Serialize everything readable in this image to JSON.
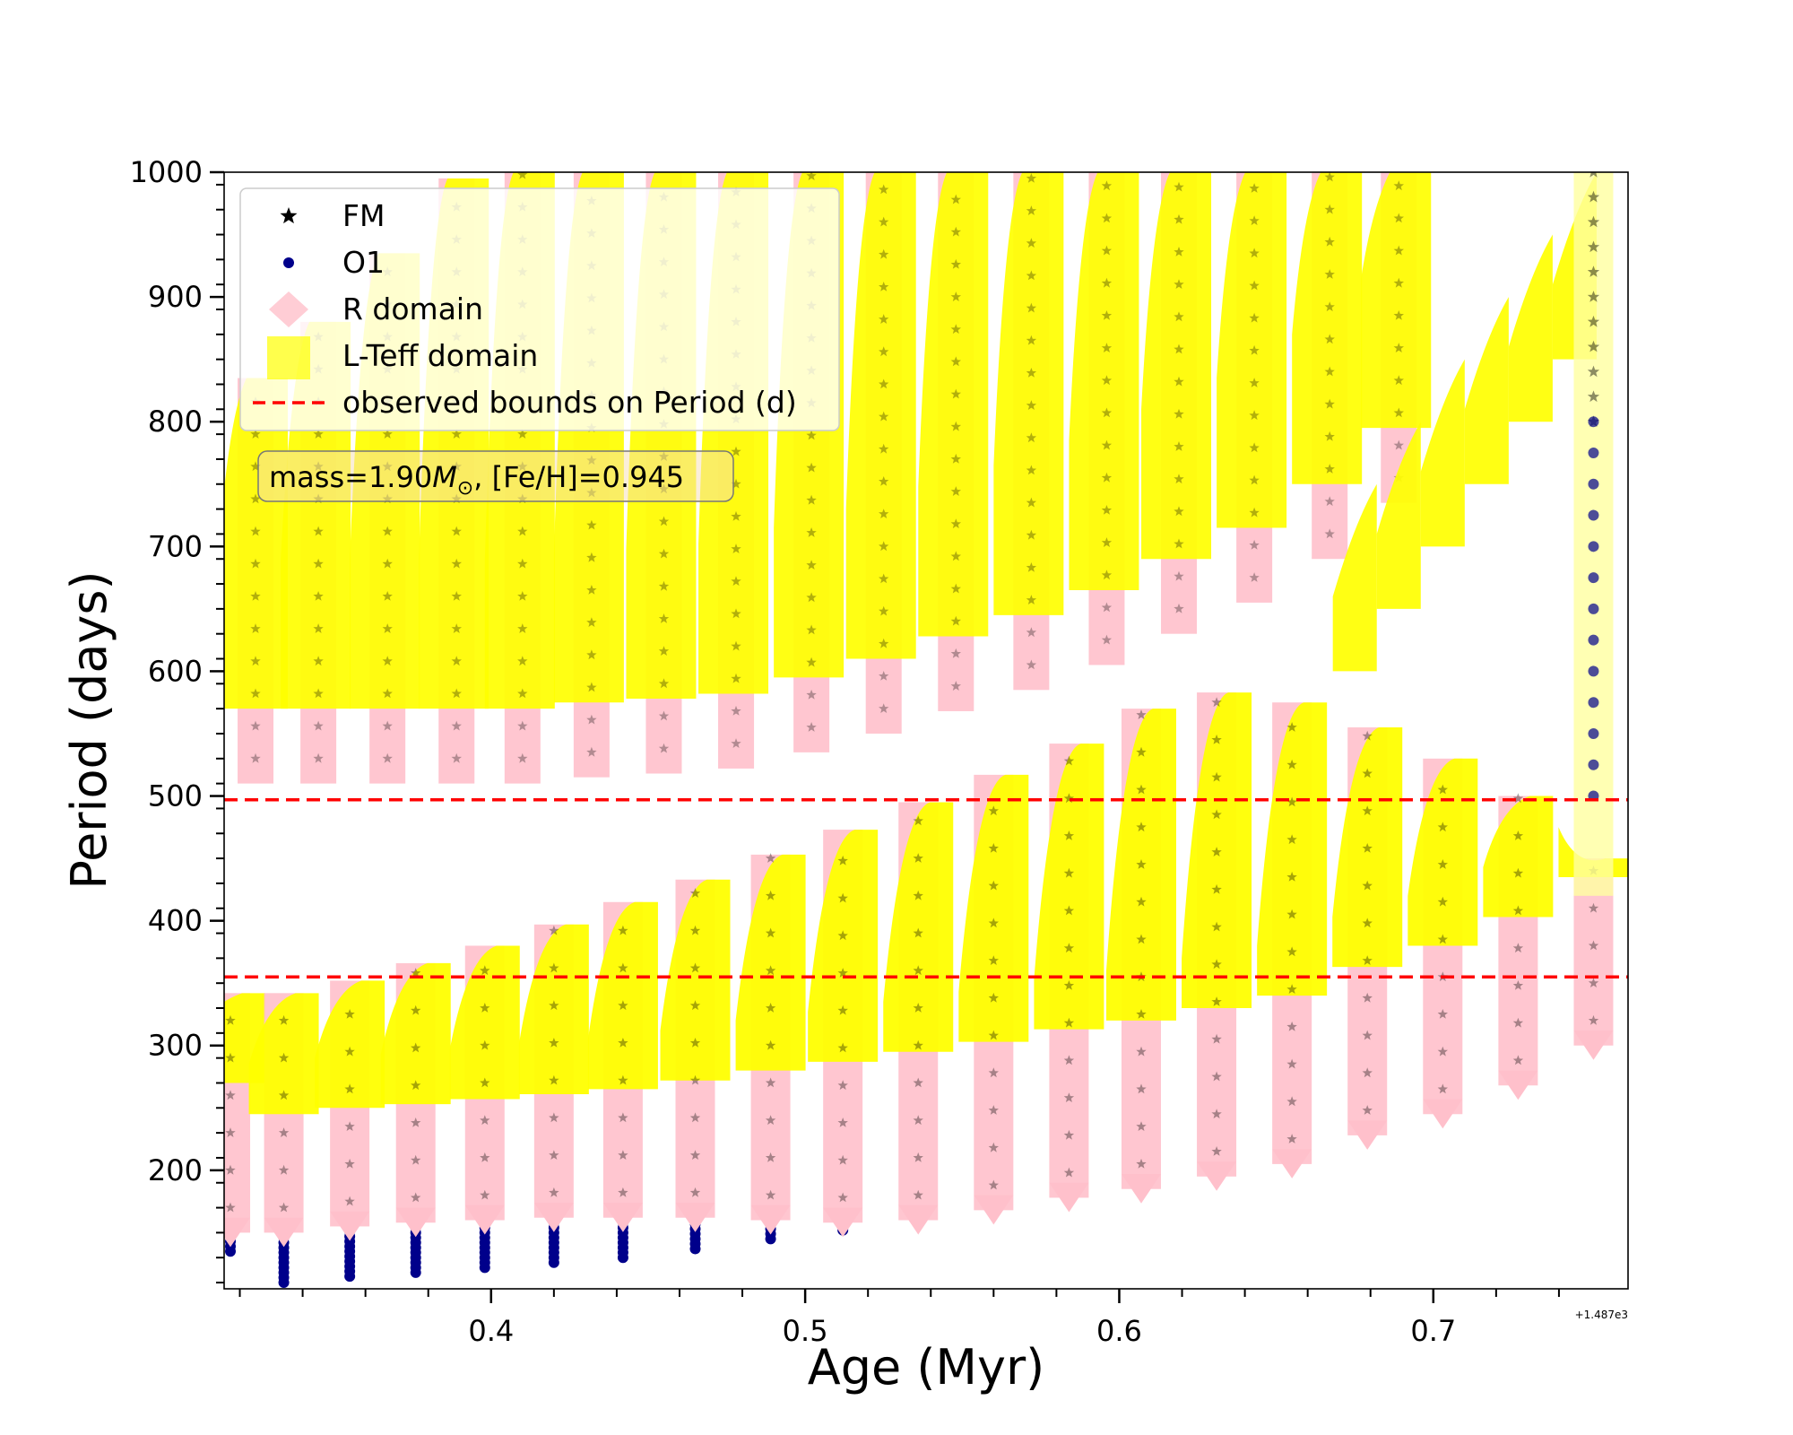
{
  "chart_data": {
    "type": "scatter",
    "title": "",
    "xlabel": "Age (Myr)",
    "ylabel": "Period (days)",
    "x_offset_label": "+1.487e3",
    "xlim": [
      0.315,
      0.762
    ],
    "ylim": [
      105,
      1000
    ],
    "x_ticks": [
      0.4,
      0.5,
      0.6,
      0.7
    ],
    "x_tick_labels": [
      "0.4",
      "0.5",
      "0.6",
      "0.7"
    ],
    "y_ticks": [
      200,
      300,
      400,
      500,
      600,
      700,
      800,
      900,
      1000
    ],
    "y_tick_labels": [
      "200",
      "300",
      "400",
      "500",
      "600",
      "700",
      "800",
      "900",
      "1000"
    ],
    "legend": {
      "placement": "upper-left",
      "entries": [
        {
          "label": "FM",
          "marker": "star",
          "color": "#000000"
        },
        {
          "label": "O1",
          "marker": "circle",
          "color": "#00008b"
        },
        {
          "label": "R domain",
          "marker": "diamond",
          "color": "#ffc0cb"
        },
        {
          "label": "L-Teff domain",
          "marker": "square",
          "color": "#ffff00"
        },
        {
          "label": "observed bounds on Period (d)",
          "marker": "dashed-line",
          "color": "#ff0000"
        }
      ]
    },
    "annotation": {
      "text_prefix": "mass=1.90",
      "text_math": "M",
      "text_sub": "⊙",
      "text_suffix": ", [Fe/H]=0.945"
    },
    "observed_bounds": [
      355,
      497
    ],
    "lower_tracks": [
      {
        "age": 0.317,
        "p_min": 135,
        "p_max": 342,
        "r_min": 150
      },
      {
        "age": 0.334,
        "p_min": 110,
        "p_max": 342,
        "r_min": 150
      },
      {
        "age": 0.355,
        "p_min": 115,
        "p_max": 352,
        "r_min": 155
      },
      {
        "age": 0.376,
        "p_min": 118,
        "p_max": 366,
        "r_min": 158
      },
      {
        "age": 0.398,
        "p_min": 122,
        "p_max": 380,
        "r_min": 160
      },
      {
        "age": 0.42,
        "p_min": 126,
        "p_max": 397,
        "r_min": 162
      },
      {
        "age": 0.442,
        "p_min": 130,
        "p_max": 415,
        "r_min": 162
      },
      {
        "age": 0.465,
        "p_min": 137,
        "p_max": 433,
        "r_min": 162
      },
      {
        "age": 0.489,
        "p_min": 145,
        "p_max": 453,
        "r_min": 160
      },
      {
        "age": 0.512,
        "p_min": 152,
        "p_max": 473,
        "r_min": 158
      },
      {
        "age": 0.536,
        "p_min": 160,
        "p_max": 495,
        "r_min": 160
      },
      {
        "age": 0.56,
        "p_min": 168,
        "p_max": 517,
        "r_min": 168
      },
      {
        "age": 0.584,
        "p_min": 178,
        "p_max": 542,
        "r_min": 178
      },
      {
        "age": 0.607,
        "p_min": 185,
        "p_max": 570,
        "r_min": 185
      },
      {
        "age": 0.631,
        "p_min": 195,
        "p_max": 583,
        "r_min": 195
      },
      {
        "age": 0.655,
        "p_min": 205,
        "p_max": 575,
        "r_min": 205
      },
      {
        "age": 0.679,
        "p_min": 228,
        "p_max": 555,
        "r_min": 228
      },
      {
        "age": 0.703,
        "p_min": 245,
        "p_max": 530,
        "r_min": 245
      },
      {
        "age": 0.727,
        "p_min": 268,
        "p_max": 500,
        "r_min": 268
      },
      {
        "age": 0.751,
        "p_min": 300,
        "p_max": 450,
        "r_min": 300
      }
    ],
    "upper_tracks": [
      {
        "age": 0.325,
        "p_min": 570,
        "p_max": 835
      },
      {
        "age": 0.345,
        "p_min": 570,
        "p_max": 880
      },
      {
        "age": 0.367,
        "p_min": 570,
        "p_max": 935
      },
      {
        "age": 0.389,
        "p_min": 570,
        "p_max": 995
      },
      {
        "age": 0.41,
        "p_min": 570,
        "p_max": 1000
      },
      {
        "age": 0.432,
        "p_min": 575,
        "p_max": 1000
      },
      {
        "age": 0.455,
        "p_min": 578,
        "p_max": 1000
      },
      {
        "age": 0.478,
        "p_min": 582,
        "p_max": 1000
      },
      {
        "age": 0.502,
        "p_min": 595,
        "p_max": 1000
      },
      {
        "age": 0.525,
        "p_min": 610,
        "p_max": 1000
      },
      {
        "age": 0.548,
        "p_min": 628,
        "p_max": 1000
      },
      {
        "age": 0.572,
        "p_min": 645,
        "p_max": 1000
      },
      {
        "age": 0.596,
        "p_min": 665,
        "p_max": 1000
      },
      {
        "age": 0.619,
        "p_min": 690,
        "p_max": 1000
      },
      {
        "age": 0.643,
        "p_min": 715,
        "p_max": 1000
      },
      {
        "age": 0.667,
        "p_min": 750,
        "p_max": 1000
      },
      {
        "age": 0.689,
        "p_min": 795,
        "p_max": 1000
      }
    ],
    "late_branch": {
      "age_start": 0.668,
      "age_end": 0.752,
      "p_start": 700,
      "p_end": 1000
    },
    "fm_sparse_column": {
      "age": 0.751,
      "p_min": 800,
      "p_max": 1000
    },
    "o1_sparse_column": {
      "age": 0.751,
      "p_min": 500,
      "p_max": 800
    }
  }
}
